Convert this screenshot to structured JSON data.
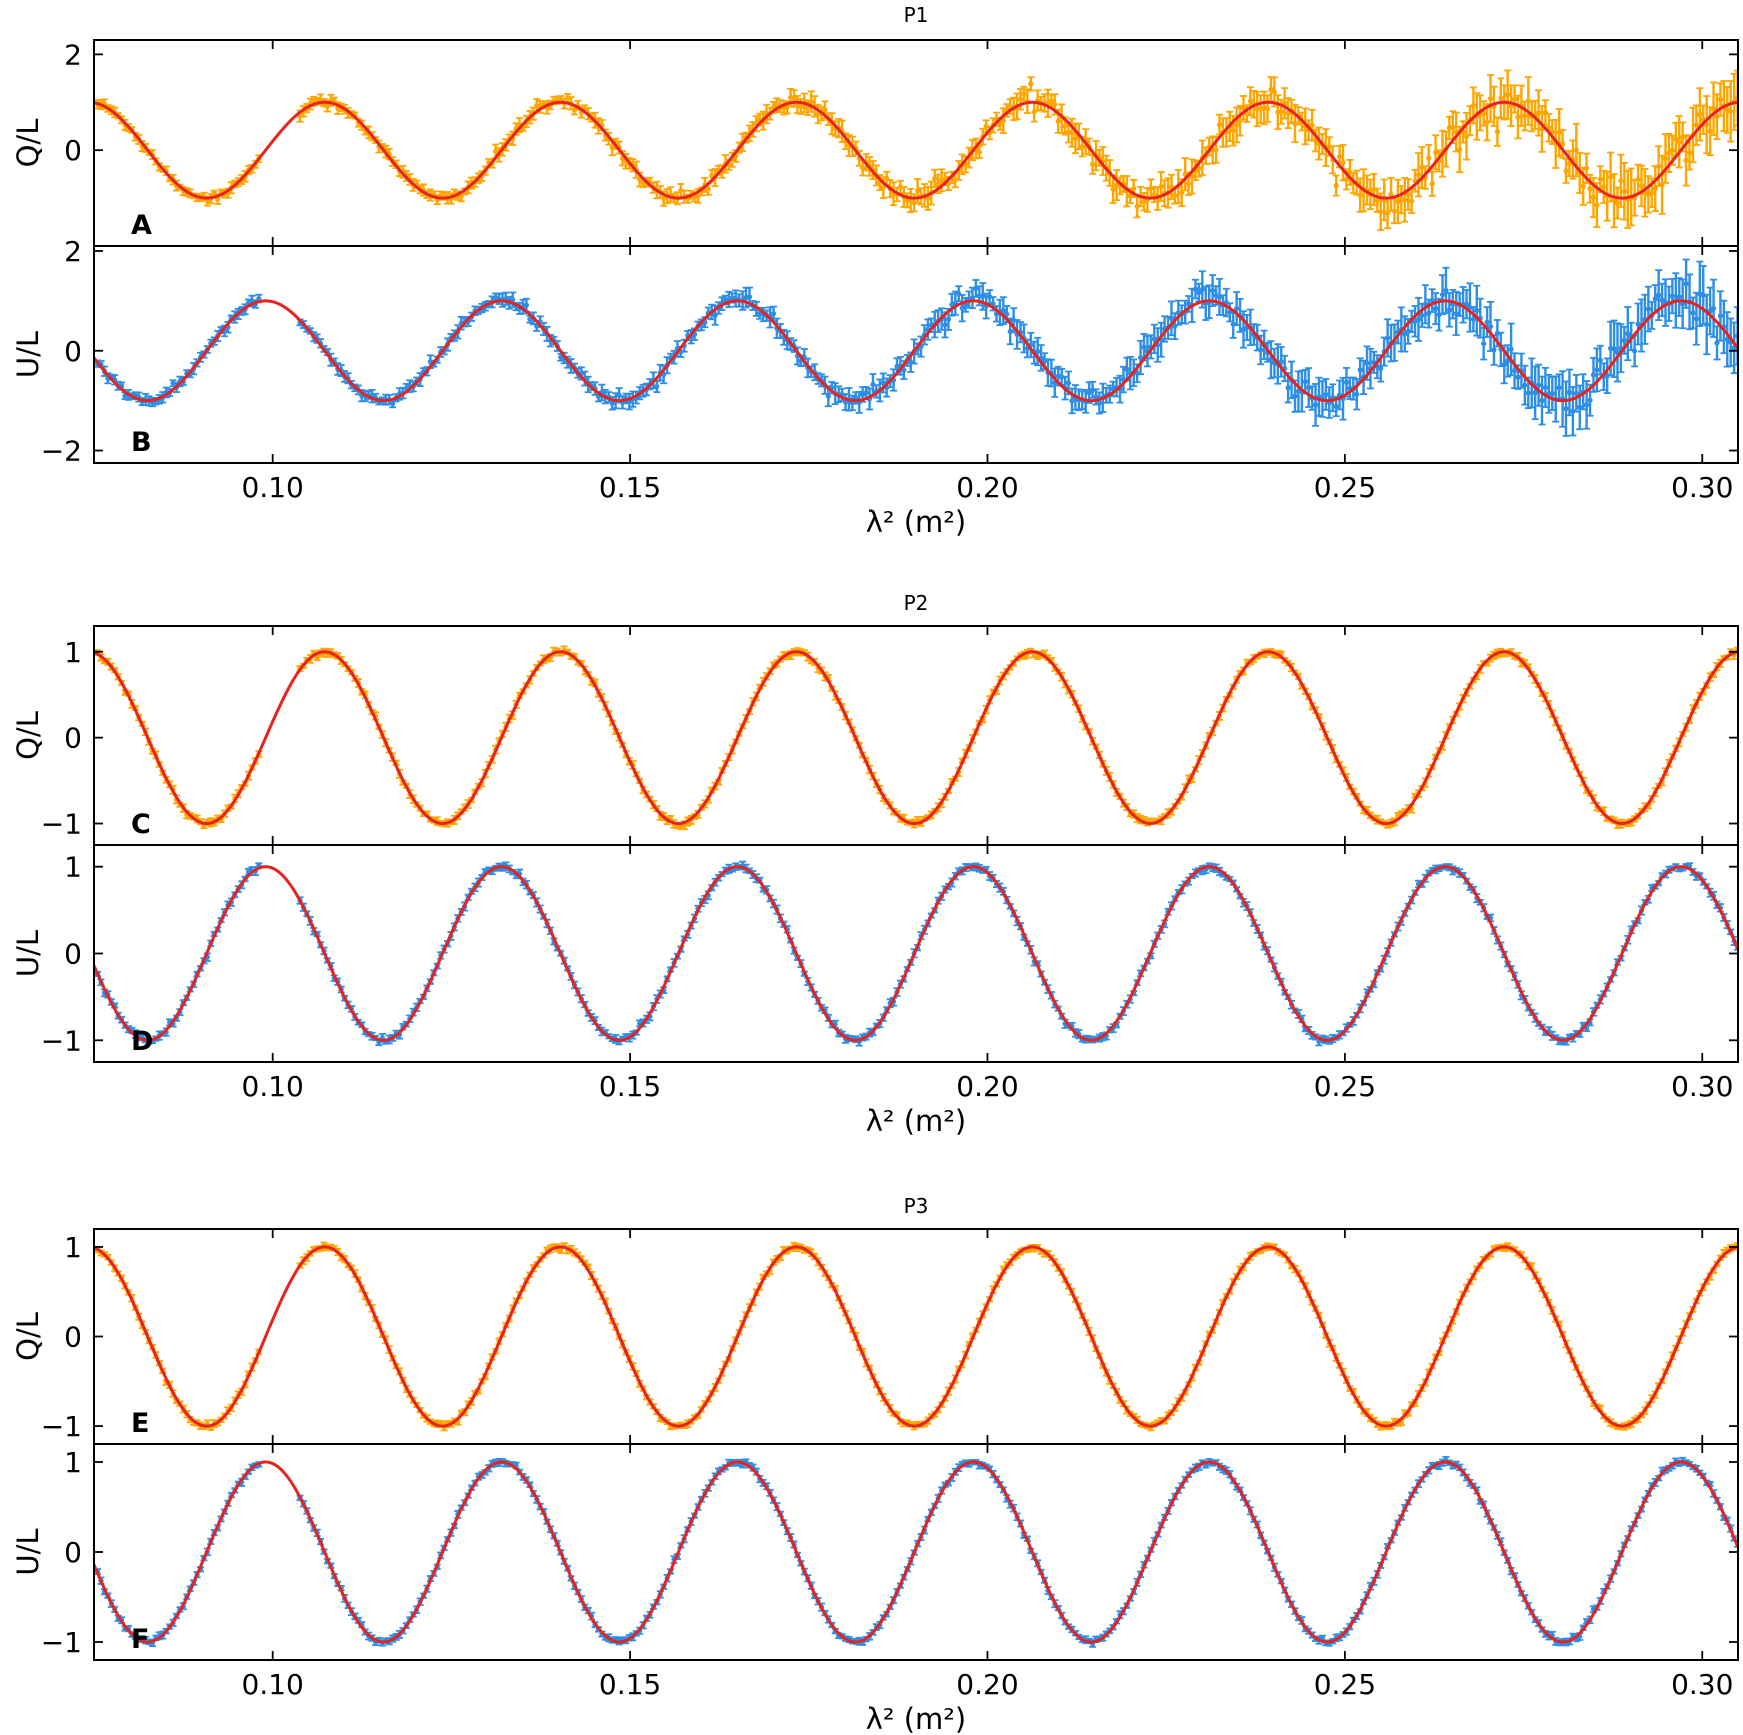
{
  "chart_data": [
    {
      "type": "line",
      "title": "P1",
      "xlabel": "λ² (m²)",
      "xlim": [
        0.075,
        0.305
      ],
      "xticks": [
        0.1,
        0.15,
        0.2,
        0.25,
        0.3
      ],
      "xtick_labels": [
        "0.10",
        "0.15",
        "0.20",
        "0.25",
        "0.30"
      ],
      "data_gap": [
        0.0985,
        0.1035
      ],
      "subplots": [
        {
          "letter": "A",
          "ylabel": "Q/L",
          "ylim": [
            -2.0,
            2.3
          ],
          "yticks": [
            -2,
            0,
            2
          ],
          "ytick_labels": [
            "",
            "0",
            "2"
          ],
          "series": [
            {
              "kind": "data",
              "color": "#FFA500",
              "phase": 1.571,
              "noise_base": 0.07,
              "noise_growth": 0.35,
              "errorbars": true
            },
            {
              "kind": "model",
              "color": "#E8231F",
              "phase": 1.571
            }
          ]
        },
        {
          "letter": "B",
          "ylabel": "U/L",
          "ylim": [
            -2.25,
            2.1
          ],
          "yticks": [
            -2,
            0,
            2
          ],
          "ytick_labels": [
            "−2",
            "0",
            "2"
          ],
          "series": [
            {
              "kind": "data",
              "color": "#2D8EE6",
              "phase": 0.0,
              "noise_base": 0.07,
              "noise_growth": 0.35,
              "errorbars": true
            },
            {
              "kind": "model",
              "color": "#E8231F",
              "phase": 0.0
            }
          ]
        }
      ],
      "model": {
        "amplitude": 1.0,
        "RM": 95.2,
        "cycles_per_unit_lambda2": 30.3
      }
    },
    {
      "type": "line",
      "title": "P2",
      "xlabel": "λ² (m²)",
      "xlim": [
        0.075,
        0.305
      ],
      "xticks": [
        0.1,
        0.15,
        0.2,
        0.25,
        0.3
      ],
      "xtick_labels": [
        "0.10",
        "0.15",
        "0.20",
        "0.25",
        "0.30"
      ],
      "data_gap": [
        0.0985,
        0.1035
      ],
      "subplots": [
        {
          "letter": "C",
          "ylabel": "Q/L",
          "ylim": [
            -1.25,
            1.3
          ],
          "yticks": [
            -1,
            0,
            1
          ],
          "ytick_labels": [
            "−1",
            "0",
            "1"
          ],
          "series": [
            {
              "kind": "data",
              "color": "#FFA500",
              "phase": 1.571,
              "noise_base": 0.03,
              "noise_growth": 0.0,
              "errorbars": true
            },
            {
              "kind": "model",
              "color": "#E8231F",
              "phase": 1.571
            }
          ]
        },
        {
          "letter": "D",
          "ylabel": "U/L",
          "ylim": [
            -1.25,
            1.25
          ],
          "yticks": [
            -1,
            0,
            1
          ],
          "ytick_labels": [
            "−1",
            "0",
            "1"
          ],
          "series": [
            {
              "kind": "data",
              "color": "#2D8EE6",
              "phase": 0.0,
              "noise_base": 0.03,
              "noise_growth": 0.0,
              "errorbars": true
            },
            {
              "kind": "model",
              "color": "#E8231F",
              "phase": 0.0
            }
          ]
        }
      ],
      "model": {
        "amplitude": 1.0,
        "RM": 95.2,
        "cycles_per_unit_lambda2": 30.3
      }
    },
    {
      "type": "line",
      "title": "P3",
      "xlabel": "λ² (m²)",
      "xlim": [
        0.075,
        0.305
      ],
      "xticks": [
        0.1,
        0.15,
        0.2,
        0.25,
        0.3
      ],
      "xtick_labels": [
        "0.10",
        "0.15",
        "0.20",
        "0.25",
        "0.30"
      ],
      "data_gap": [
        0.0985,
        0.1035
      ],
      "subplots": [
        {
          "letter": "E",
          "ylabel": "Q/L",
          "ylim": [
            -1.2,
            1.2
          ],
          "yticks": [
            -1,
            0,
            1
          ],
          "ytick_labels": [
            "−1",
            "0",
            "1"
          ],
          "series": [
            {
              "kind": "data",
              "color": "#FFA500",
              "phase": 1.571,
              "noise_base": 0.025,
              "noise_growth": 0.0,
              "errorbars": true
            },
            {
              "kind": "model",
              "color": "#E8231F",
              "phase": 1.571
            }
          ]
        },
        {
          "letter": "F",
          "ylabel": "U/L",
          "ylim": [
            -1.2,
            1.2
          ],
          "yticks": [
            -1,
            0,
            1
          ],
          "ytick_labels": [
            "−1",
            "0",
            "1"
          ],
          "series": [
            {
              "kind": "data",
              "color": "#2D8EE6",
              "phase": 0.0,
              "noise_base": 0.025,
              "noise_growth": 0.0,
              "errorbars": true
            },
            {
              "kind": "model",
              "color": "#E8231F",
              "phase": 0.0
            }
          ]
        }
      ],
      "model": {
        "amplitude": 1.0,
        "RM": 95.2,
        "cycles_per_unit_lambda2": 30.3
      }
    }
  ]
}
